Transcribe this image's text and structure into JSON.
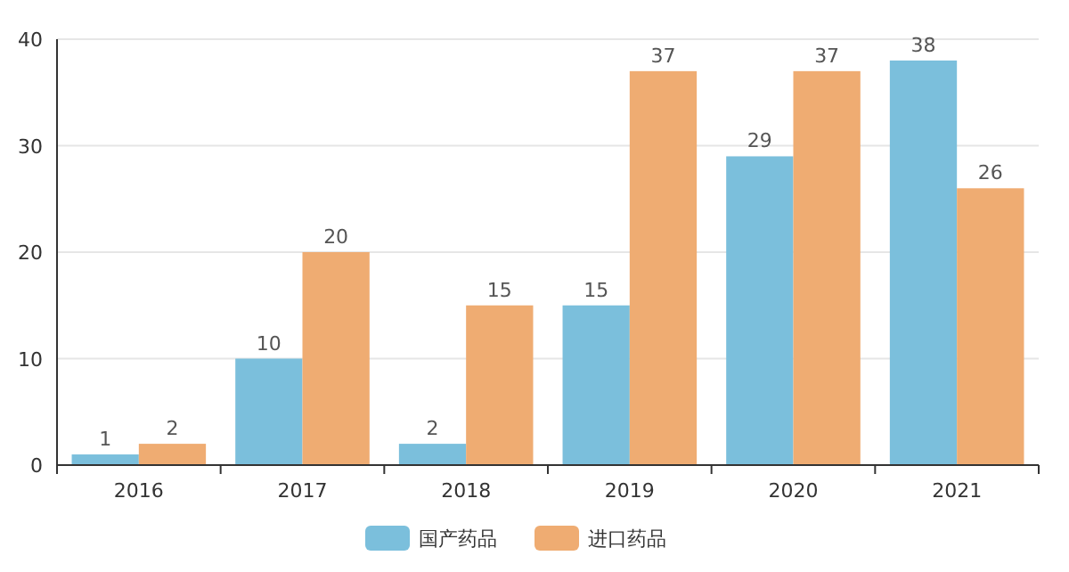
{
  "chart_data": {
    "type": "bar",
    "categories": [
      "2016",
      "2017",
      "2018",
      "2019",
      "2020",
      "2021"
    ],
    "series": [
      {
        "name": "国产药品",
        "color": "#7bbfdc",
        "values": [
          1,
          10,
          2,
          15,
          29,
          38
        ]
      },
      {
        "name": "进口药品",
        "color": "#efac72",
        "values": [
          2,
          20,
          15,
          37,
          37,
          26
        ]
      }
    ],
    "ylim": [
      0,
      40
    ],
    "yticks": [
      0,
      10,
      20,
      30,
      40
    ],
    "grid": "y",
    "legend": "bottom",
    "data_labels": true
  }
}
